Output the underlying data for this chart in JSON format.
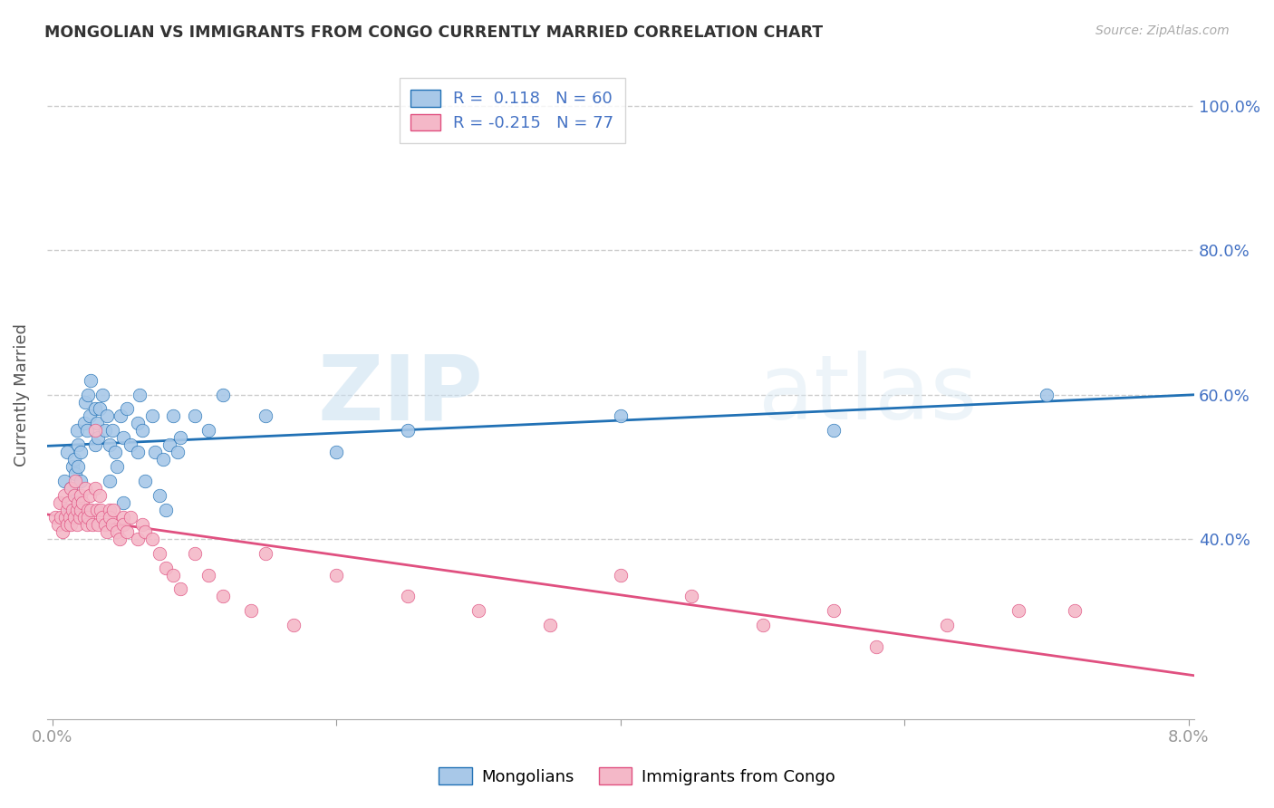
{
  "title": "MONGOLIAN VS IMMIGRANTS FROM CONGO CURRENTLY MARRIED CORRELATION CHART",
  "source": "Source: ZipAtlas.com",
  "ylabel": "Currently Married",
  "ylim": [
    0.15,
    1.05
  ],
  "xlim": [
    -0.0004,
    0.0804
  ],
  "yticks": [
    0.4,
    0.6,
    0.8,
    1.0
  ],
  "ytick_labels": [
    "40.0%",
    "60.0%",
    "80.0%",
    "100.0%"
  ],
  "xticks": [
    0.0,
    0.02,
    0.04,
    0.06,
    0.08
  ],
  "xtick_labels": [
    "0.0%",
    "",
    "",
    "",
    "8.0%"
  ],
  "mongolian_R": "0.118",
  "mongolian_N": "60",
  "congo_R": "-0.215",
  "congo_N": "77",
  "blue_color": "#a8c8e8",
  "pink_color": "#f4b8c8",
  "blue_line_color": "#2171b5",
  "pink_line_color": "#e05080",
  "watermark_zip": "ZIP",
  "watermark_atlas": "atlas",
  "legend_label_1": "Mongolians",
  "legend_label_2": "Immigrants from Congo",
  "background_color": "#ffffff",
  "mongolian_x": [
    0.0008,
    0.001,
    0.0012,
    0.0013,
    0.0014,
    0.0015,
    0.0015,
    0.0016,
    0.0017,
    0.0018,
    0.0018,
    0.002,
    0.002,
    0.0022,
    0.0023,
    0.0024,
    0.0025,
    0.0026,
    0.0027,
    0.003,
    0.003,
    0.0031,
    0.0032,
    0.0033,
    0.0035,
    0.0037,
    0.0038,
    0.004,
    0.004,
    0.0042,
    0.0044,
    0.0045,
    0.0048,
    0.005,
    0.005,
    0.0052,
    0.0055,
    0.006,
    0.006,
    0.0061,
    0.0063,
    0.0065,
    0.007,
    0.0072,
    0.0075,
    0.0078,
    0.008,
    0.0082,
    0.0085,
    0.0088,
    0.009,
    0.01,
    0.011,
    0.012,
    0.015,
    0.02,
    0.025,
    0.04,
    0.055,
    0.07
  ],
  "mongolian_y": [
    0.48,
    0.52,
    0.44,
    0.47,
    0.5,
    0.46,
    0.51,
    0.49,
    0.55,
    0.5,
    0.53,
    0.48,
    0.52,
    0.56,
    0.59,
    0.55,
    0.6,
    0.57,
    0.62,
    0.53,
    0.58,
    0.56,
    0.54,
    0.58,
    0.6,
    0.55,
    0.57,
    0.53,
    0.48,
    0.55,
    0.52,
    0.5,
    0.57,
    0.54,
    0.45,
    0.58,
    0.53,
    0.56,
    0.52,
    0.6,
    0.55,
    0.48,
    0.57,
    0.52,
    0.46,
    0.51,
    0.44,
    0.53,
    0.57,
    0.52,
    0.54,
    0.57,
    0.55,
    0.6,
    0.57,
    0.52,
    0.55,
    0.57,
    0.55,
    0.6
  ],
  "congo_x": [
    0.0002,
    0.0004,
    0.0005,
    0.0006,
    0.0007,
    0.0008,
    0.0009,
    0.001,
    0.001,
    0.0011,
    0.0012,
    0.0013,
    0.0013,
    0.0014,
    0.0015,
    0.0015,
    0.0016,
    0.0017,
    0.0017,
    0.0018,
    0.0019,
    0.002,
    0.002,
    0.0021,
    0.0022,
    0.0023,
    0.0024,
    0.0025,
    0.0025,
    0.0026,
    0.0027,
    0.0028,
    0.003,
    0.003,
    0.0031,
    0.0032,
    0.0033,
    0.0034,
    0.0035,
    0.0037,
    0.0038,
    0.004,
    0.004,
    0.0042,
    0.0043,
    0.0045,
    0.0047,
    0.005,
    0.005,
    0.0052,
    0.0055,
    0.006,
    0.0063,
    0.0065,
    0.007,
    0.0075,
    0.008,
    0.0085,
    0.009,
    0.01,
    0.011,
    0.012,
    0.014,
    0.015,
    0.017,
    0.02,
    0.025,
    0.03,
    0.035,
    0.04,
    0.045,
    0.05,
    0.055,
    0.058,
    0.063,
    0.068,
    0.072
  ],
  "congo_y": [
    0.43,
    0.42,
    0.45,
    0.43,
    0.41,
    0.46,
    0.43,
    0.44,
    0.42,
    0.45,
    0.43,
    0.47,
    0.42,
    0.44,
    0.46,
    0.43,
    0.48,
    0.44,
    0.42,
    0.45,
    0.43,
    0.46,
    0.44,
    0.45,
    0.43,
    0.47,
    0.42,
    0.44,
    0.43,
    0.46,
    0.44,
    0.42,
    0.55,
    0.47,
    0.44,
    0.42,
    0.46,
    0.44,
    0.43,
    0.42,
    0.41,
    0.44,
    0.43,
    0.42,
    0.44,
    0.41,
    0.4,
    0.43,
    0.42,
    0.41,
    0.43,
    0.4,
    0.42,
    0.41,
    0.4,
    0.38,
    0.36,
    0.35,
    0.33,
    0.38,
    0.35,
    0.32,
    0.3,
    0.38,
    0.28,
    0.35,
    0.32,
    0.3,
    0.28,
    0.35,
    0.32,
    0.28,
    0.3,
    0.25,
    0.28,
    0.3,
    0.3
  ]
}
